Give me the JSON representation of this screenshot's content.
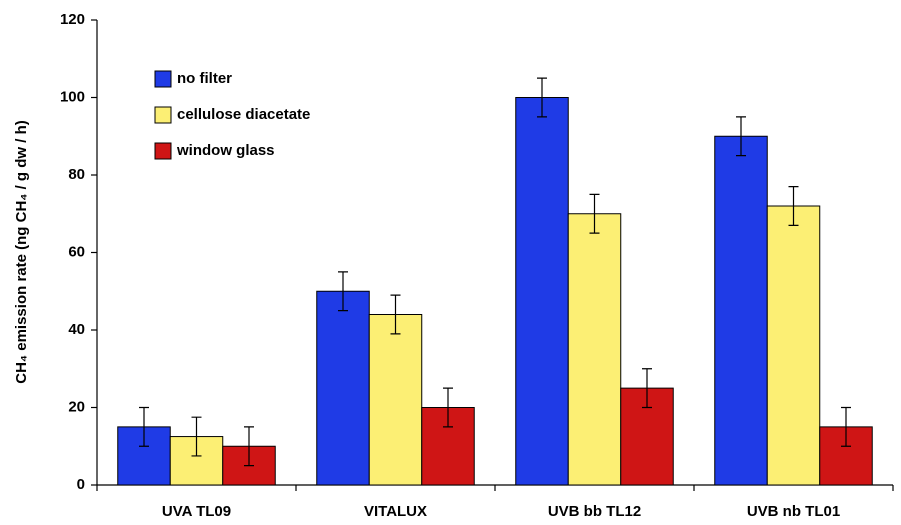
{
  "chart_data": {
    "type": "bar",
    "y_label": "CH₄ emission rate (ng CH₄ / g dw / h)",
    "categories": [
      "UVA TL09",
      "VITALUX",
      "UVB bb TL12",
      "UVB nb TL01"
    ],
    "series": [
      {
        "name": "no filter",
        "color": "#1f3be6",
        "values": [
          15,
          50,
          100,
          90
        ],
        "errors": [
          5,
          5,
          5,
          5
        ]
      },
      {
        "name": "cellulose diacetate",
        "color": "#fcef74",
        "values": [
          12.5,
          44,
          70,
          72
        ],
        "errors": [
          5,
          5,
          5,
          5
        ]
      },
      {
        "name": "window glass",
        "color": "#cf1515",
        "values": [
          10,
          20,
          25,
          15
        ],
        "errors": [
          5,
          5,
          5,
          5
        ]
      }
    ],
    "ylim": [
      0,
      120
    ],
    "yticks": [
      0,
      20,
      40,
      60,
      80,
      100,
      120
    ],
    "grid": false,
    "legend": "upper left"
  }
}
